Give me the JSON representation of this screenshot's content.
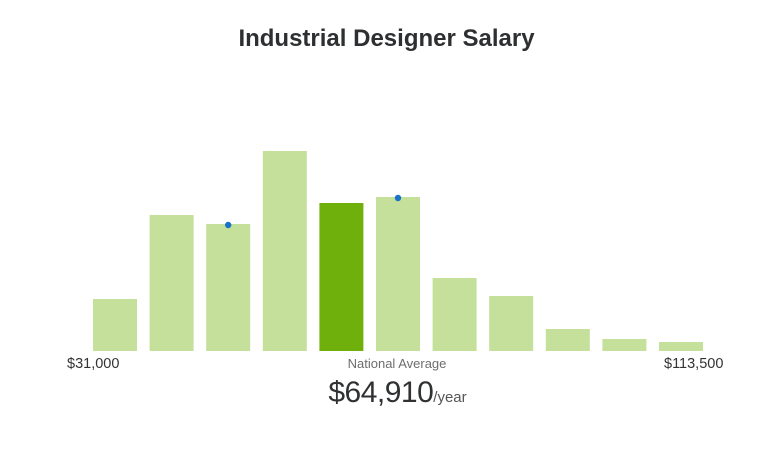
{
  "title": "Industrial Designer Salary",
  "chart_data": {
    "type": "bar",
    "title": "Industrial Designer Salary",
    "xlabel": "",
    "ylabel": "",
    "x_range_labels": [
      "$31,000",
      "$113,500"
    ],
    "values": [
      52,
      136,
      127,
      200,
      148,
      154,
      73,
      55,
      22,
      12,
      9
    ],
    "highlight_index": 4,
    "marker_indices": [
      2,
      5
    ],
    "ylim": [
      0,
      200
    ],
    "grid": false,
    "legend": "none",
    "colors": {
      "bar": "#c5e09b",
      "highlight": "#6fb00c",
      "marker": "#1a73c8"
    }
  },
  "national_average": {
    "caption": "National Average",
    "value": "$64,910",
    "unit": "/year"
  }
}
